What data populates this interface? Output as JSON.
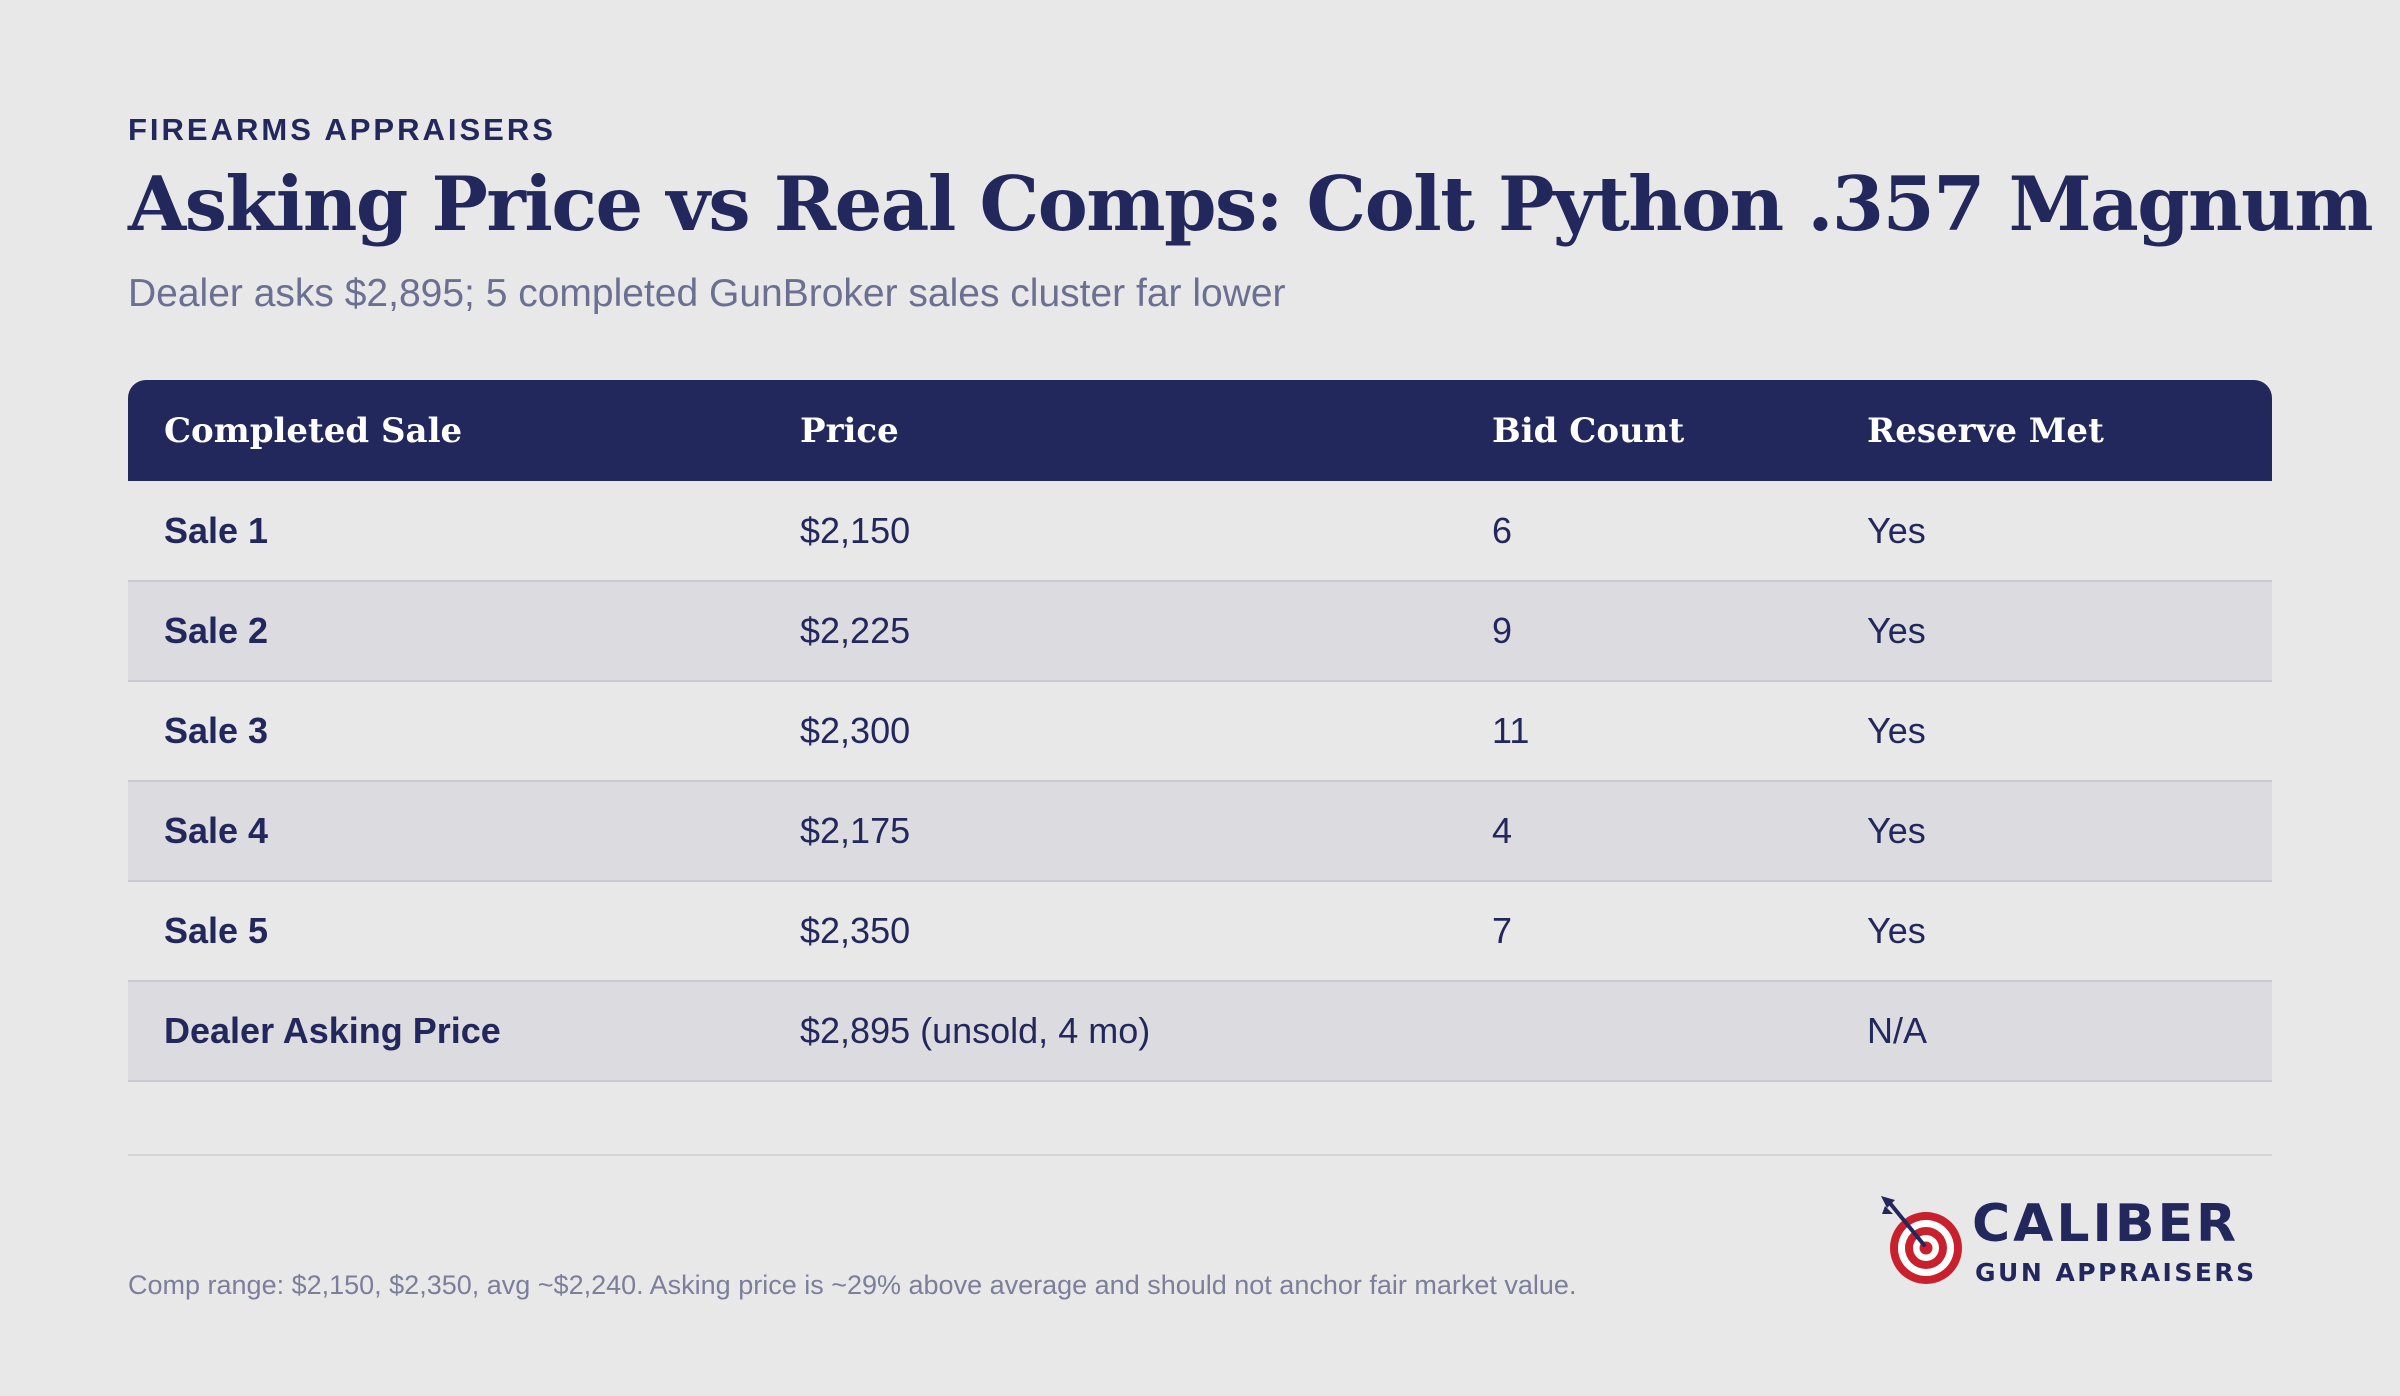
{
  "header": {
    "eyebrow": "FIREARMS APPRAISERS",
    "title": "Asking Price vs Real Comps: Colt Python .357 Magnum",
    "subtitle": "Dealer asks $2,895; 5 completed GunBroker sales cluster far lower"
  },
  "table": {
    "columns": [
      "Completed Sale",
      "Price",
      "Bid Count",
      "Reserve Met"
    ],
    "rows": [
      {
        "sale": "Sale 1",
        "price": "$2,150",
        "bids": "6",
        "reserve": "Yes"
      },
      {
        "sale": "Sale 2",
        "price": "$2,225",
        "bids": "9",
        "reserve": "Yes"
      },
      {
        "sale": "Sale 3",
        "price": "$2,300",
        "bids": "11",
        "reserve": "Yes"
      },
      {
        "sale": "Sale 4",
        "price": "$2,175",
        "bids": "4",
        "reserve": "Yes"
      },
      {
        "sale": "Sale 5",
        "price": "$2,350",
        "bids": "7",
        "reserve": "Yes"
      },
      {
        "sale": "Dealer Asking Price",
        "price": "$2,895 (unsold, 4 mo)",
        "bids": "",
        "reserve": "N/A"
      }
    ]
  },
  "footnote": "Comp range: $2,150, $2,350, avg ~$2,240. Asking price is ~29% above average and should not anchor fair market value.",
  "logo": {
    "main": "CALIBER",
    "sub": "GUN APPRAISERS",
    "icon": "target-arrow-icon"
  },
  "colors": {
    "navy": "#22275c",
    "background": "#e8e8e9",
    "stripe": "#dcdce0",
    "target_red": "#c8202c"
  }
}
